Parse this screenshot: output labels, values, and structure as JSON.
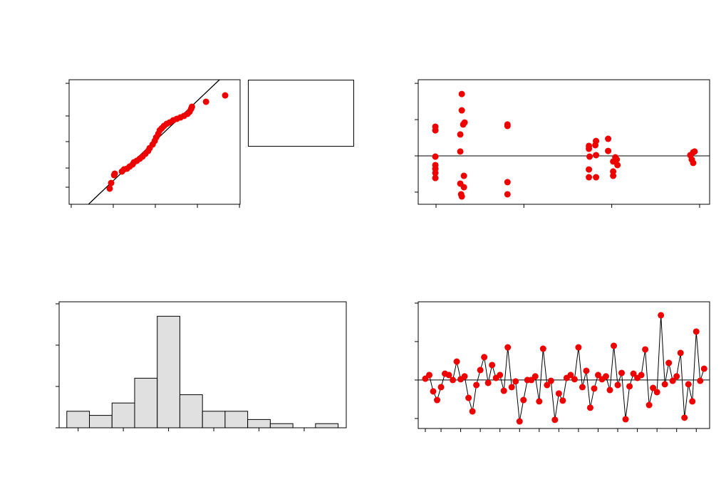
{
  "chart_data": [
    {
      "type": "scatter",
      "color": "#ee0000",
      "x": [
        -2.17,
        -2.1,
        -1.96,
        -1.93,
        -1.59,
        -1.49,
        -1.35,
        -1.22,
        -1.08,
        -1.02,
        -0.88,
        -0.74,
        -0.61,
        -0.47,
        -0.34,
        -0.27,
        -0.13,
        -0.03,
        0.04,
        0.14,
        0.21,
        0.31,
        0.41,
        0.54,
        0.68,
        0.85,
        1.02,
        1.19,
        1.36,
        1.53,
        1.63,
        1.7,
        1.74,
        2.41,
        3.32
      ],
      "values": [
        12.6,
        17.1,
        23.4,
        24.6,
        26.3,
        28.0,
        28.6,
        30.3,
        32.0,
        33.7,
        34.9,
        36.6,
        38.3,
        40.6,
        42.9,
        45.1,
        48.0,
        50.9,
        53.7,
        56.6,
        59.4,
        61.1,
        62.9,
        64.6,
        65.7,
        67.4,
        68.6,
        69.7,
        70.9,
        72.6,
        74.3,
        76.6,
        78.3,
        82.3,
        87.4
      ],
      "fit_line": {
        "x": [
          -3.18,
          3.05
        ],
        "y": [
          0,
          100
        ]
      },
      "xlim": [
        -4.1,
        4.03
      ],
      "xticks": [
        -4,
        -2,
        0,
        2,
        4
      ],
      "ylim": [
        0,
        100
      ],
      "yticks": [
        13.7,
        29.1,
        50.3,
        70.9,
        97.1
      ]
    },
    {
      "type": "scatter",
      "color": "#ee0000",
      "x": [
        9.92,
        9.92,
        9.92,
        9.92,
        9.92,
        9.92,
        9.92,
        12.93,
        12.93,
        13.25,
        13.09,
        12.76,
        12.76,
        13.17,
        12.76,
        13.17,
        12.85,
        12.93,
        18.13,
        18.13,
        18.13,
        18.13,
        27.4,
        27.4,
        27.48,
        27.4,
        27.4,
        28.21,
        28.13,
        28.21,
        28.21,
        29.59,
        29.59,
        30.41,
        30.57,
        30.16,
        30.65,
        30.16,
        30.16,
        39.27,
        39.43,
        38.94,
        39.11,
        39.27
      ],
      "values": [
        1.61,
        1.41,
        -0.04,
        -0.51,
        -0.71,
        -0.94,
        -1.22,
        3.41,
        2.51,
        1.84,
        1.73,
        1.18,
        0.24,
        -1.1,
        -1.53,
        -1.73,
        -2.12,
        -2.24,
        1.73,
        1.65,
        -1.45,
        -2.12,
        0.55,
        0.39,
        -0.04,
        -0.75,
        -1.18,
        0.82,
        0.59,
        0.04,
        -1.18,
        0.94,
        0.27,
        -0.08,
        -0.2,
        -0.31,
        -0.51,
        -0.86,
        -1.1,
        0.2,
        0.24,
        0.04,
        -0.2,
        -0.39
      ],
      "hline": 0,
      "xlim": [
        7.97,
        41.14
      ],
      "xticks": [
        10,
        20,
        30,
        40
      ],
      "ylim": [
        -2.67,
        4.2
      ],
      "yticks": [
        -2,
        0,
        2,
        4
      ]
    },
    {
      "type": "histogram",
      "color": "#e0e0e0",
      "bins": [
        -2.25,
        -1.75,
        -1.25,
        -0.75,
        -0.25,
        0.25,
        0.75,
        1.25,
        1.75,
        2.25,
        2.75,
        3.25,
        3.75
      ],
      "values": [
        4,
        3,
        6,
        12,
        27,
        8,
        4,
        4,
        2,
        1,
        0,
        1
      ],
      "xlim": [
        -2.42,
        3.93
      ],
      "xticks": [
        -2,
        -1,
        0,
        1,
        2,
        3
      ],
      "ylim": [
        0,
        30.5
      ],
      "yticks": [
        0,
        10,
        20,
        30
      ]
    },
    {
      "type": "line",
      "color": "#ee0000",
      "x": [
        1,
        2,
        3,
        4,
        5,
        6,
        7,
        8,
        9,
        10,
        11,
        12,
        13,
        14,
        15,
        16,
        17,
        18,
        19,
        20,
        21,
        22,
        23,
        24,
        25,
        26,
        27,
        28,
        29,
        30,
        31,
        32,
        33,
        34,
        35,
        36,
        37,
        38,
        39,
        40,
        41,
        42,
        43,
        44,
        45,
        46,
        47,
        48,
        49,
        50,
        51,
        52,
        53,
        54,
        55,
        56,
        57,
        58,
        59,
        60,
        61,
        62,
        63,
        64,
        65,
        66,
        67,
        68,
        69,
        70,
        71,
        72
      ],
      "values": [
        0.07,
        0.26,
        -0.59,
        -1.04,
        -0.37,
        0.33,
        0.26,
        0,
        0.96,
        0.04,
        0.19,
        -0.93,
        -1.63,
        -0.26,
        0.52,
        1.19,
        -0.15,
        0.78,
        0.11,
        0.26,
        -0.56,
        1.7,
        -0.37,
        -0.07,
        -2.15,
        -1.04,
        0,
        0,
        0.19,
        -1.11,
        1.63,
        -0.26,
        -0.04,
        -2.07,
        -0.7,
        -1.07,
        0.11,
        0.26,
        0.04,
        1.7,
        -0.37,
        0.48,
        -1.44,
        -0.44,
        0.26,
        0.04,
        0.19,
        -0.52,
        1.78,
        -0.26,
        0.37,
        -2.04,
        -0.33,
        0.33,
        0.11,
        0.26,
        1.59,
        -1.3,
        -0.41,
        -0.63,
        3.37,
        -0.22,
        0.89,
        -0.04,
        0.19,
        1.41,
        -1.96,
        -0.22,
        -1.11,
        2.52,
        -0.04,
        0.59
      ],
      "hline": 0,
      "xlim": [
        -0.81,
        73.4
      ],
      "xticks": [
        1,
        5,
        10,
        15,
        20,
        25,
        30,
        35,
        40,
        45,
        50,
        55,
        60,
        65,
        70
      ],
      "ylim": [
        -2.52,
        4.07
      ],
      "yticks": [
        -2,
        0,
        2,
        4
      ]
    }
  ]
}
